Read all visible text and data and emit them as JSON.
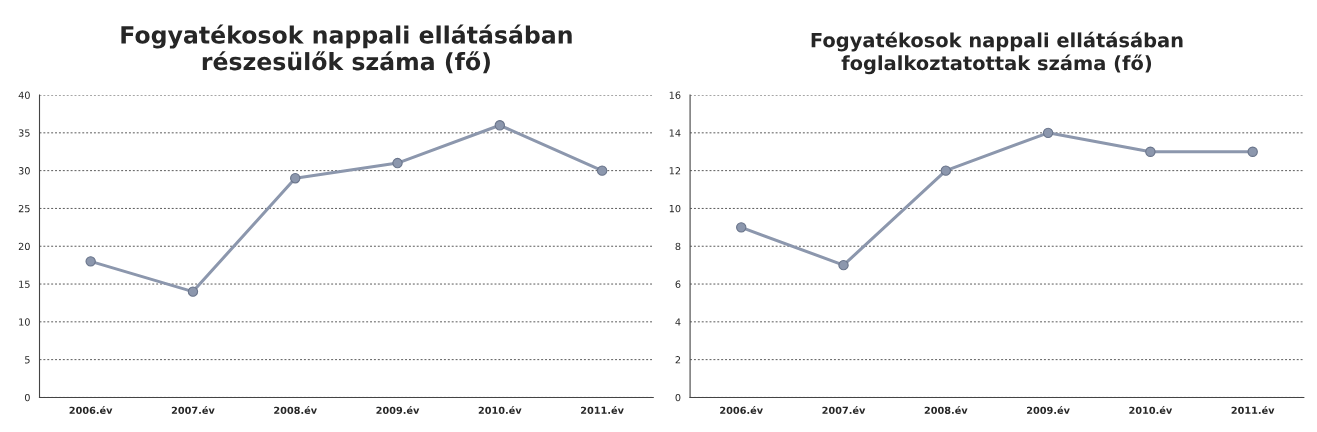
{
  "chart_data": [
    {
      "type": "line",
      "title": "Fogyatékosok nappali ellátásában\nrészesülők száma (fő)",
      "categories": [
        "2006.év",
        "2007.év",
        "2008.év",
        "2009.év",
        "2010.év",
        "2011.év"
      ],
      "series": [
        {
          "color": "#8c97ad",
          "values": [
            18,
            14,
            29,
            31,
            36,
            30
          ]
        }
      ],
      "ylim": [
        0,
        40
      ],
      "yticks": [
        0,
        5,
        10,
        15,
        20,
        25,
        30,
        35,
        40
      ],
      "grid": "y",
      "marker": "circle",
      "line_style": "solid"
    },
    {
      "type": "line",
      "title": "Fogyatékosok nappali ellátásában\nfoglalkoztatottak száma (fő)",
      "categories": [
        "2006.év",
        "2007.év",
        "2008.év",
        "2009.év",
        "2010.év",
        "2011.év"
      ],
      "series": [
        {
          "color": "#8c97ad",
          "values": [
            9,
            7,
            12,
            14,
            13,
            13
          ]
        }
      ],
      "ylim": [
        0,
        16
      ],
      "yticks": [
        0,
        2,
        4,
        6,
        8,
        10,
        12,
        14,
        16
      ],
      "grid": "y",
      "marker": "circle",
      "line_style": "solid"
    }
  ]
}
